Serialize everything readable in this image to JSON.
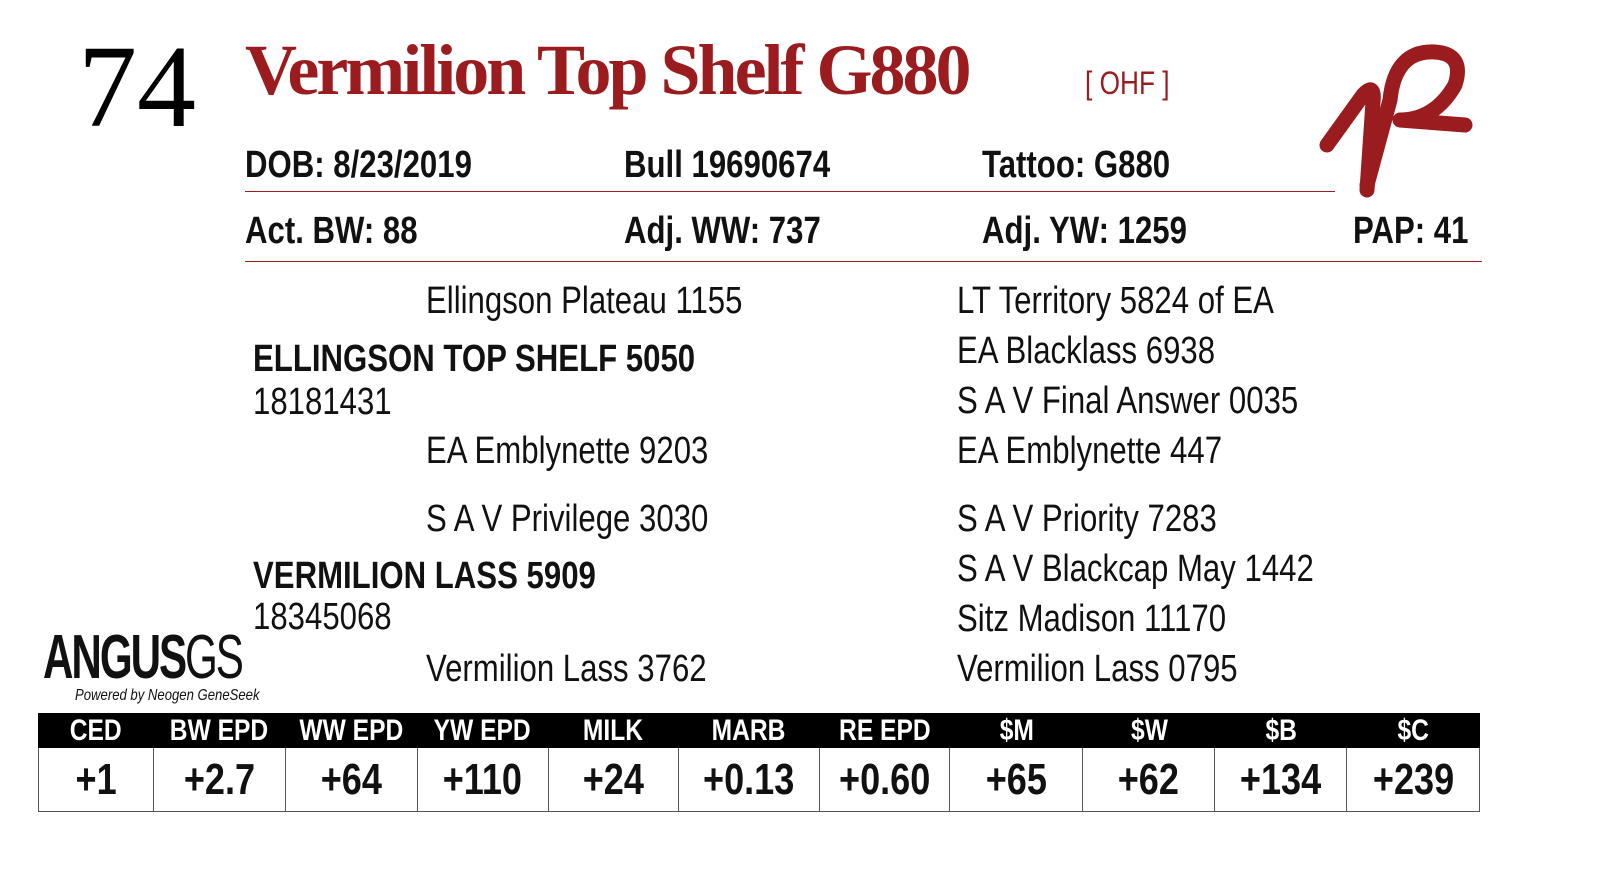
{
  "lot_number": "74",
  "name": "Vermilion Top Shelf G880",
  "registration_tag": "[ OHF ]",
  "logo": {
    "brand_mark": "VR",
    "angus_gs": "ANGUS",
    "angus_gs_suffix": "GS",
    "powered_by": "Powered by Neogen GeneSeek"
  },
  "info": {
    "dob": "DOB:  8/23/2019",
    "bull": "Bull   19690674",
    "tattoo": "Tattoo:  G880",
    "act_bw": "Act. BW: 88",
    "adj_ww": "Adj. WW: 737",
    "adj_yw": "Adj. YW: 1259",
    "pap": "PAP: 41"
  },
  "pedigree": {
    "sire": {
      "name": "ELLINGSON TOP SHELF 5050",
      "reg": "18181431",
      "sire": "Ellingson Plateau 1155",
      "dam": "EA Emblynette 9203",
      "ss": "LT Territory 5824 of EA",
      "sd": "EA Blacklass 6938",
      "ds": "S A V Final Answer 0035",
      "dd": "EA Emblynette 447"
    },
    "dam": {
      "name": "VERMILION LASS 5909",
      "reg": "18345068",
      "sire": "S A V Privilege 3030",
      "dam": "Vermilion Lass 3762",
      "ss": "S A V Priority 7283",
      "sd": "S A V Blackcap May 1442",
      "ds": "Sitz Madison 11170",
      "dd": "Vermilion Lass 0795"
    }
  },
  "epd": {
    "headers": [
      "CED",
      "BW EPD",
      "WW EPD",
      "YW EPD",
      "MILK EPD",
      "MARB EPD",
      "RE EPD",
      "$M",
      "$W",
      "$B",
      "$C"
    ],
    "values": [
      "+1",
      "+2.7",
      "+64",
      "+110",
      "+24",
      "+0.13",
      "+0.60",
      "+65",
      "+62",
      "+134",
      "+239"
    ]
  },
  "colors": {
    "accent": "#9b1c1f"
  }
}
